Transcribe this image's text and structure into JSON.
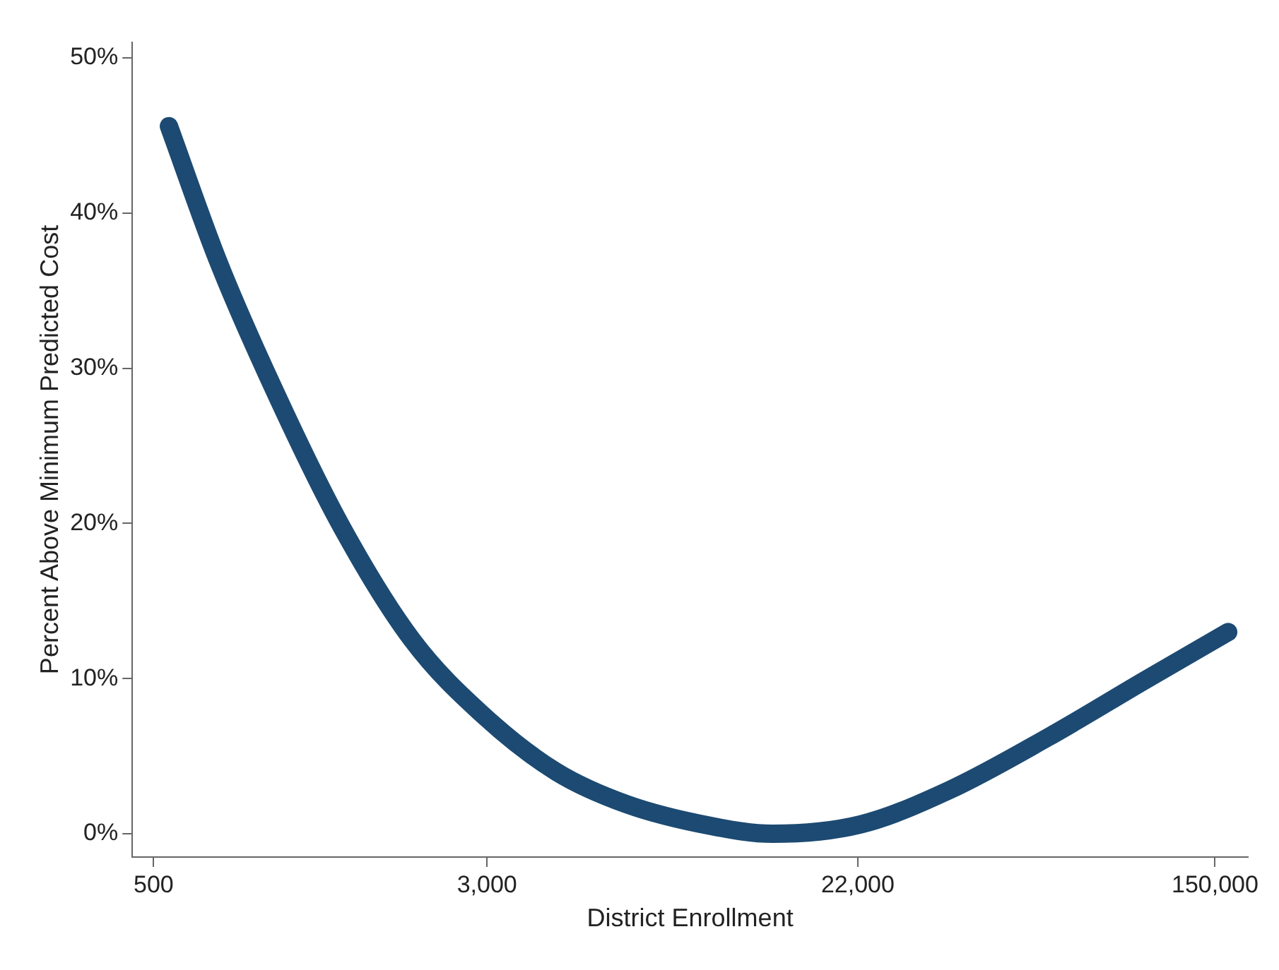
{
  "chart_data": {
    "type": "line",
    "xlabel": "District Enrollment",
    "ylabel": "Percent Above Minimum Predicted Cost",
    "log": "x",
    "grid": false,
    "legend": false,
    "marker": "none",
    "line_style": "solid",
    "xlim": [
      446,
      179000
    ],
    "xticks": [
      {
        "value": 500,
        "label": "500"
      },
      {
        "value": 3000,
        "label": "3,000"
      },
      {
        "value": 22000,
        "label": "22,000"
      },
      {
        "value": 150000,
        "label": "150,000"
      }
    ],
    "ylim": [
      -1.5,
      51
    ],
    "yticks": [
      {
        "value": 0,
        "label": "0%"
      },
      {
        "value": 10,
        "label": "10%"
      },
      {
        "value": 20,
        "label": "20%"
      },
      {
        "value": 30,
        "label": "30%"
      },
      {
        "value": 40,
        "label": "40%"
      },
      {
        "value": 50,
        "label": "50%"
      }
    ],
    "series": [
      {
        "color": "#1c4a72",
        "x": [
          543,
          705,
          931,
          1360,
          2005,
          2950,
          4350,
          6360,
          10000,
          13900,
          22300,
          35900,
          61000,
          103000,
          161000
        ],
        "values": [
          45.6,
          37,
          29.3,
          20,
          12.5,
          7.6,
          4,
          1.9,
          0.5,
          0,
          0.6,
          2.8,
          6.2,
          9.9,
          13
        ]
      }
    ]
  }
}
